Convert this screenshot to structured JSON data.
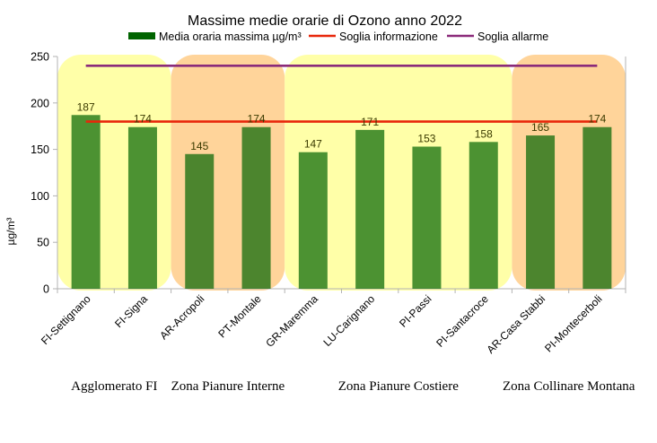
{
  "chart_data": {
    "type": "bar",
    "title": "Massime medie orarie di Ozono anno 2022",
    "ylabel": "µg/m³",
    "xlabel": "",
    "ylim": [
      0,
      250
    ],
    "yticks": [
      0,
      50,
      100,
      150,
      200,
      250
    ],
    "grid": false,
    "legend_position": "top",
    "categories": [
      "FI-Settignano",
      "FI-Signa",
      "AR-Acropoli",
      "PT-Montale",
      "GR-Maremma",
      "LU-Carignano",
      "PI-Passi",
      "PI-Santacroce",
      "AR-Casa Stabbi",
      "PI-Montecerboli"
    ],
    "series": [
      {
        "name": "Media oraria massima µg/m³",
        "values": [
          187,
          174,
          145,
          174,
          147,
          171,
          153,
          158,
          165,
          174
        ],
        "color": "#006400"
      }
    ],
    "lines": [
      {
        "name": "Soglia informazione",
        "value": 180,
        "color": "#e8260a"
      },
      {
        "name": "Soglia allarme",
        "value": 240,
        "color": "#8b2a7a"
      }
    ],
    "zones": [
      {
        "label": "Agglomerato FI",
        "start": 0,
        "end": 1,
        "color": "#ffff99"
      },
      {
        "label": "Zona Pianure Interne",
        "start": 2,
        "end": 3,
        "color": "#ffcc88"
      },
      {
        "label": "Zona Pianure  Costiere",
        "start": 4,
        "end": 7,
        "color": "#ffff99"
      },
      {
        "label": "Zona Collinare Montana",
        "start": 8,
        "end": 9,
        "color": "#ffcc88"
      }
    ]
  }
}
